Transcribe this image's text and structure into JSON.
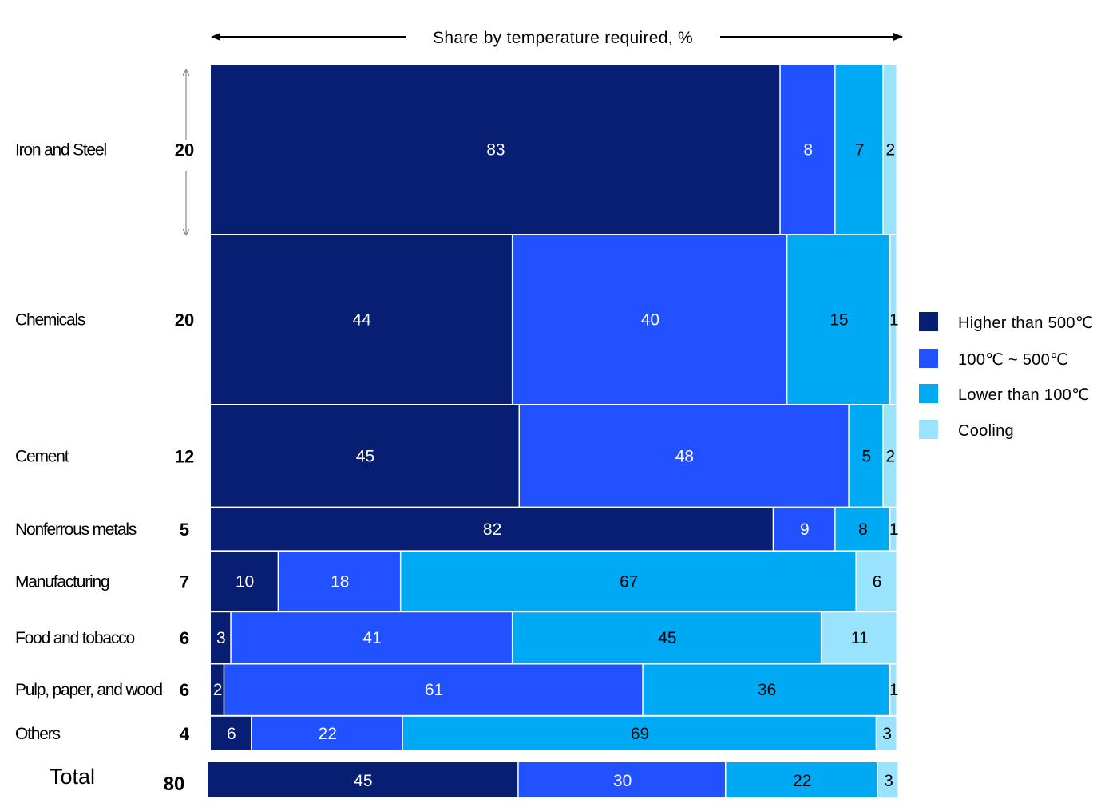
{
  "chart_data": {
    "type": "bar",
    "stacking": "100% stacked horizontal (Marimekko / variable-height rows)",
    "header": "Share by temperature required, %",
    "categories": [
      "Iron and Steel",
      "Chemicals",
      "Cement",
      "Nonferrous metals",
      "Manufacturing",
      "Food and tobacco",
      "Pulp, paper, and wood",
      "Others"
    ],
    "row_weights": [
      20,
      20,
      12,
      5,
      7,
      6,
      6,
      4
    ],
    "series": [
      {
        "name": "Higher than 500℃",
        "color": "#071e72",
        "label_color": "#ffffff",
        "values": [
          83,
          44,
          45,
          82,
          10,
          3,
          2,
          6
        ]
      },
      {
        "name": "100℃ ~ 500℃",
        "color": "#2251ff",
        "label_color": "#ffffff",
        "values": [
          8,
          40,
          48,
          9,
          18,
          41,
          61,
          22
        ]
      },
      {
        "name": "Lower than 100℃",
        "color": "#00a9f4",
        "label_color": "#000000",
        "values": [
          7,
          15,
          5,
          8,
          67,
          45,
          36,
          69
        ]
      },
      {
        "name": "Cooling",
        "color": "#99e3ff",
        "label_color": "#000000",
        "values": [
          2,
          1,
          2,
          1,
          6,
          11,
          1,
          3
        ]
      }
    ],
    "total": {
      "label": "Total",
      "weight": 80,
      "values": [
        45,
        30,
        22,
        3
      ]
    },
    "legend_position": "right",
    "grid": false
  }
}
